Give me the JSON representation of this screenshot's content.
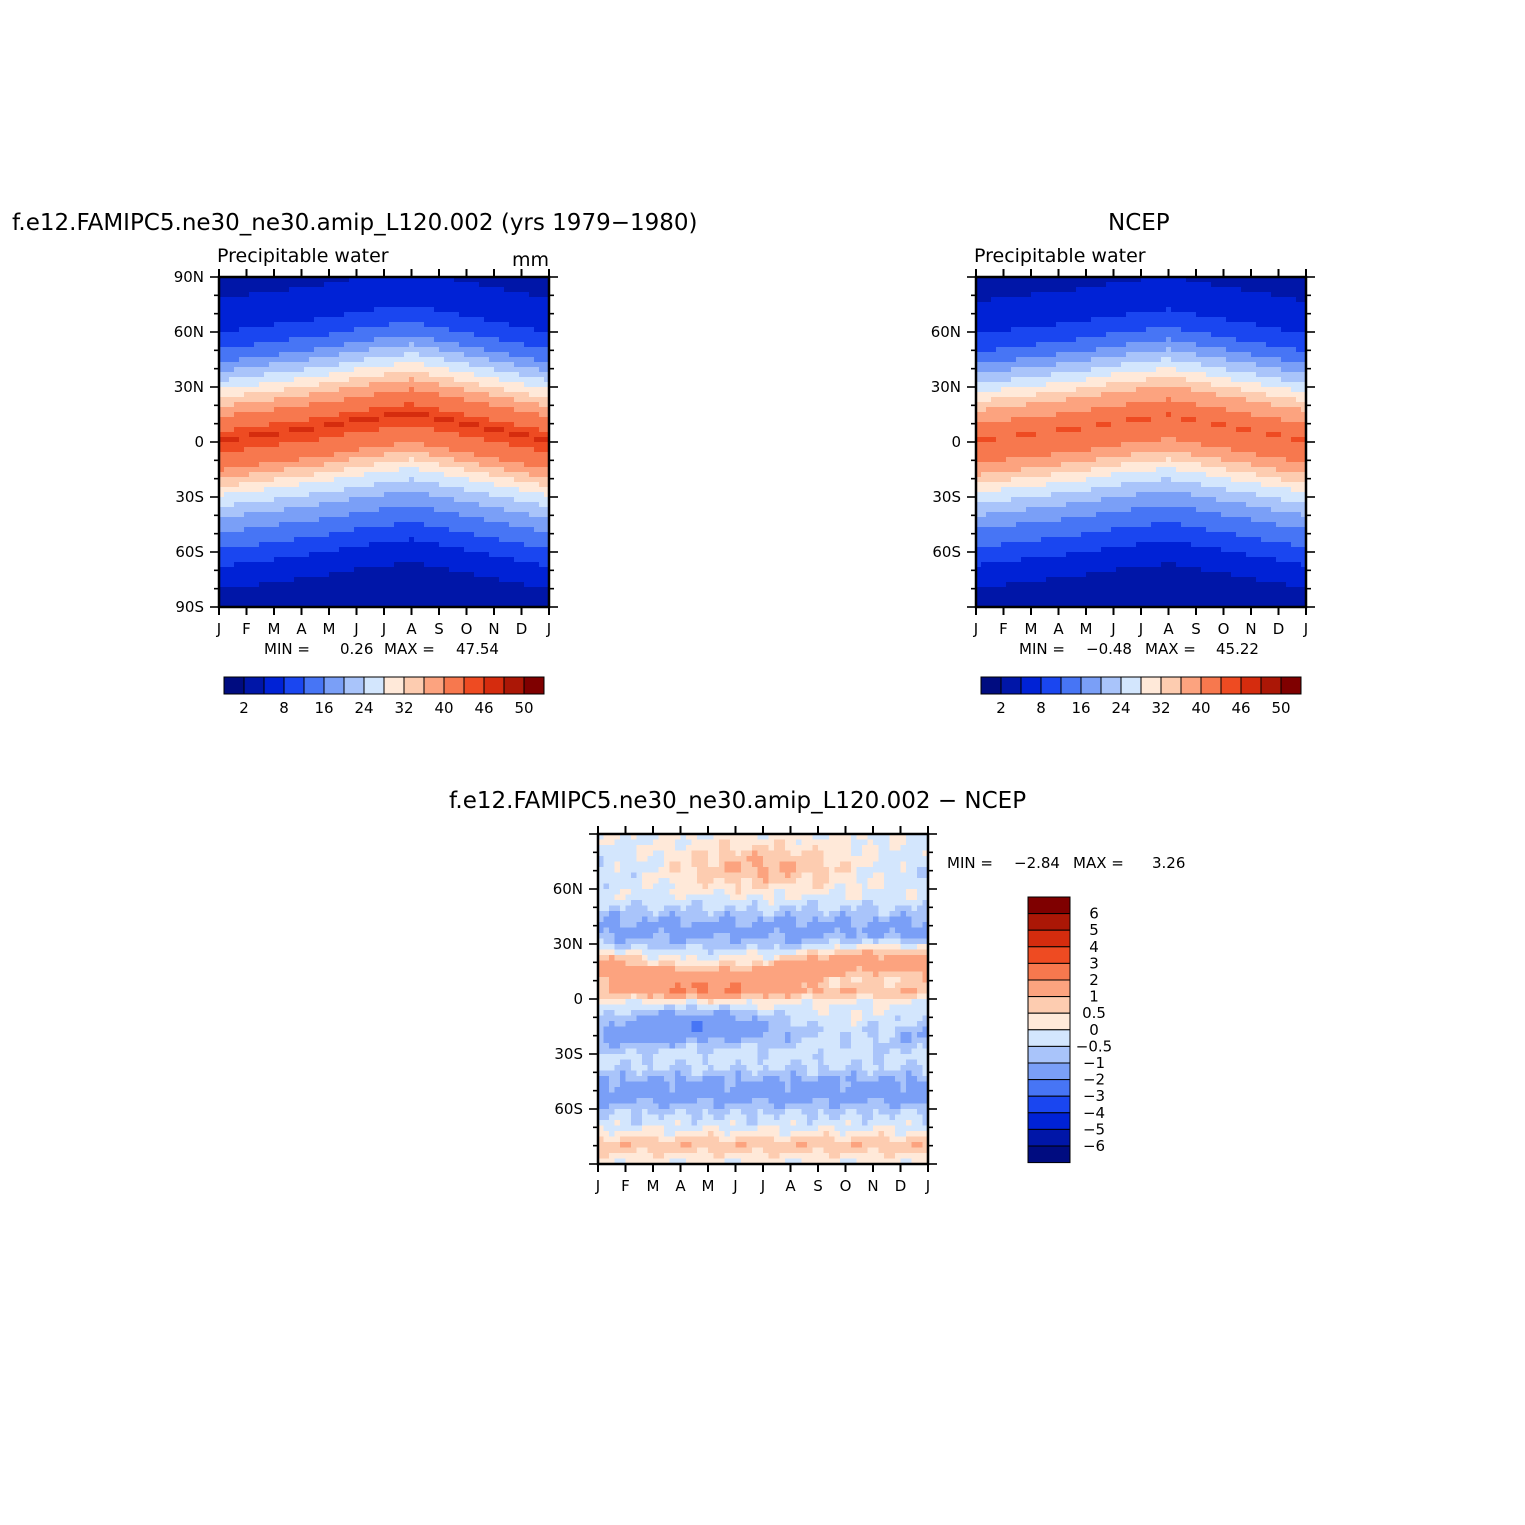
{
  "chart_data": [
    {
      "type": "heatmap",
      "title": "f.e12.FAMIPC5.ne30_ne30.amip_L120.002 (yrs 1979−1980)",
      "subtitle": "Precipitable water",
      "units": "mm",
      "x_ticks": [
        "J",
        "F",
        "M",
        "A",
        "M",
        "J",
        "J",
        "A",
        "S",
        "O",
        "N",
        "D",
        "J"
      ],
      "y_ticks": [
        "90N",
        "60N",
        "30N",
        "0",
        "30S",
        "60S",
        "90S"
      ],
      "min_label": "MIN =",
      "min_value": "0.26",
      "max_label": "MAX =",
      "max_value": "47.54",
      "colorbar_labels": [
        "2",
        "8",
        "16",
        "24",
        "32",
        "40",
        "46",
        "50"
      ],
      "field": {
        "latitudes": [
          90,
          75,
          60,
          45,
          30,
          15,
          0,
          -15,
          -30,
          -45,
          -60,
          -75,
          -90
        ],
        "month_lat_shift": [
          -1,
          -3,
          -5,
          -7,
          -9,
          -12,
          -14,
          -16,
          -13,
          -10,
          -7,
          -4,
          -1
        ],
        "values_at_shift0": [
          2,
          4,
          7,
          13,
          24,
          36,
          43,
          38,
          26,
          17,
          11,
          5,
          2
        ]
      }
    },
    {
      "type": "heatmap",
      "title": "NCEP",
      "subtitle": "Precipitable water",
      "x_ticks": [
        "J",
        "F",
        "M",
        "A",
        "M",
        "J",
        "J",
        "A",
        "S",
        "O",
        "N",
        "D",
        "J"
      ],
      "y_ticks": [
        "60N",
        "30N",
        "0",
        "30S",
        "60S"
      ],
      "min_label": "MIN =",
      "min_value": "−0.48",
      "max_label": "MAX =",
      "max_value": "45.22",
      "colorbar_labels": [
        "2",
        "8",
        "16",
        "24",
        "32",
        "40",
        "46",
        "50"
      ]
    },
    {
      "type": "heatmap",
      "title": "f.e12.FAMIPC5.ne30_ne30.amip_L120.002 − NCEP",
      "x_ticks": [
        "J",
        "F",
        "M",
        "A",
        "M",
        "J",
        "J",
        "A",
        "S",
        "O",
        "N",
        "D",
        "J"
      ],
      "y_ticks": [
        "60N",
        "30N",
        "0",
        "30S",
        "60S"
      ],
      "min_label": "MIN =",
      "min_value": "−2.84",
      "max_label": "MAX =",
      "max_value": "3.26",
      "colorbar_labels": [
        "6",
        "5",
        "4",
        "3",
        "2",
        "1",
        "0.5",
        "0",
        "−0.5",
        "−1",
        "−2",
        "−3",
        "−4",
        "−5",
        "−6"
      ]
    }
  ],
  "colors": {
    "absolute_scale": [
      "#000c80",
      "#0016a8",
      "#0022d6",
      "#1a46f0",
      "#4775f5",
      "#7a9ff7",
      "#a9c4fa",
      "#d3e6fd",
      "#ffe9d9",
      "#fdccb0",
      "#fca37f",
      "#f7784e",
      "#ee4b22",
      "#d52c0e",
      "#ab1706",
      "#7f0000"
    ],
    "difference_scale": [
      "#7f0000",
      "#ab1706",
      "#d52c0e",
      "#ee4b22",
      "#f7784e",
      "#fca37f",
      "#fdccb0",
      "#ffe9d9",
      "#d3e6fd",
      "#a9c4fa",
      "#7a9ff7",
      "#4775f5",
      "#1a46f0",
      "#0022d6",
      "#0016a8",
      "#000c80"
    ]
  }
}
